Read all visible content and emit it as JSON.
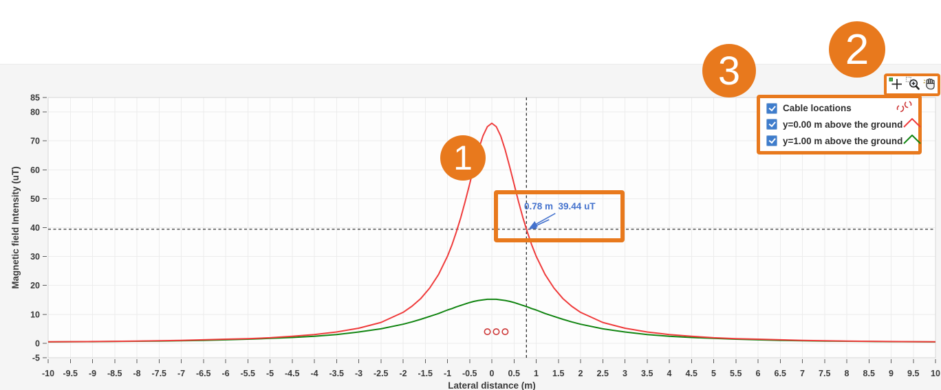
{
  "annotations": {
    "step1": "1",
    "step2": "2",
    "step3": "3"
  },
  "toolbar": {
    "tools": [
      {
        "name": "cursor-tool"
      },
      {
        "name": "zoom-tool"
      },
      {
        "name": "pan-tool"
      }
    ]
  },
  "legend": {
    "items": [
      {
        "label": "Cable locations",
        "checked": true,
        "symbol": "circles",
        "color": "#cc3333"
      },
      {
        "label": "y=0.00 m above the ground",
        "checked": true,
        "symbol": "line",
        "color": "#EF3B3B"
      },
      {
        "label": "y=1.00 m above the ground",
        "checked": true,
        "symbol": "line",
        "color": "#108410"
      }
    ]
  },
  "cursor": {
    "label": "0.78 m  39.44 uT",
    "x_m": 0.78,
    "value_uT": 39.44
  },
  "colors": {
    "accent_orange": "#E8791D",
    "curve_red": "#EF3B3B",
    "curve_green": "#108410",
    "cursor_blue": "#4472CD",
    "checkbox_blue": "#3F7DCC",
    "panel_bg": "#f5f5f5",
    "plot_bg": "#fdfdfd",
    "grid": "#ececec"
  },
  "chart_data": {
    "type": "line",
    "title": "",
    "xlabel": "Lateral distance (m)",
    "ylabel": "Magnetic field Intensity (uT)",
    "xlim": [
      -10,
      10
    ],
    "ylim": [
      -5,
      85
    ],
    "x_tick_step": 0.5,
    "y_tick_labels": [
      -5,
      0,
      10,
      20,
      30,
      40,
      50,
      60,
      70,
      80,
      85
    ],
    "y_grid_step": 10,
    "grid": true,
    "legend_position": "top-right",
    "x": [
      -10,
      -9.5,
      -9,
      -8.5,
      -8,
      -7.5,
      -7,
      -6.5,
      -6,
      -5.5,
      -5,
      -4.5,
      -4,
      -3.5,
      -3,
      -2.5,
      -2,
      -1.8,
      -1.6,
      -1.4,
      -1.2,
      -1,
      -0.9,
      -0.8,
      -0.7,
      -0.6,
      -0.5,
      -0.4,
      -0.3,
      -0.2,
      -0.1,
      0,
      0.1,
      0.2,
      0.3,
      0.4,
      0.5,
      0.6,
      0.7,
      0.8,
      0.9,
      1,
      1.2,
      1.4,
      1.6,
      1.8,
      2,
      2.5,
      3,
      3.5,
      4,
      4.5,
      5,
      5.5,
      6,
      6.5,
      7,
      7.5,
      8,
      8.5,
      9,
      9.5,
      10
    ],
    "series": [
      {
        "name": "y=0.00 m above the ground",
        "color": "#EF3B3B",
        "values": [
          0.5,
          0.55,
          0.61,
          0.68,
          0.77,
          0.88,
          1.0,
          1.2,
          1.4,
          1.6,
          1.9,
          2.4,
          3.0,
          3.9,
          5.2,
          7.2,
          10.7,
          12.8,
          15.5,
          19.1,
          23.8,
          30.1,
          34.0,
          38.5,
          43.5,
          49.1,
          55.1,
          61.2,
          66.9,
          71.7,
          74.9,
          76.1,
          74.9,
          71.7,
          66.9,
          61.2,
          55.1,
          49.1,
          43.5,
          38.5,
          34.0,
          30.1,
          23.8,
          19.1,
          15.5,
          12.8,
          10.7,
          7.2,
          5.2,
          3.9,
          3.0,
          2.4,
          1.9,
          1.6,
          1.4,
          1.2,
          1.0,
          0.88,
          0.77,
          0.68,
          0.61,
          0.55,
          0.5
        ]
      },
      {
        "name": "y=1.00 m above the ground",
        "color": "#108410",
        "values": [
          0.45,
          0.5,
          0.55,
          0.62,
          0.69,
          0.78,
          0.89,
          1.0,
          1.2,
          1.4,
          1.7,
          2.0,
          2.4,
          3.0,
          3.9,
          5.0,
          6.6,
          7.4,
          8.3,
          9.3,
          10.3,
          11.5,
          12.0,
          12.6,
          13.1,
          13.6,
          14.1,
          14.5,
          14.8,
          15.0,
          15.2,
          15.2,
          15.2,
          15.0,
          14.8,
          14.5,
          14.1,
          13.6,
          13.1,
          12.6,
          12.0,
          11.5,
          10.3,
          9.3,
          8.3,
          7.4,
          6.6,
          5.0,
          3.9,
          3.0,
          2.4,
          2.0,
          1.7,
          1.4,
          1.2,
          1.0,
          0.89,
          0.78,
          0.69,
          0.62,
          0.55,
          0.5,
          0.45
        ]
      }
    ],
    "cables": {
      "name": "Cable locations",
      "color": "#cc3333",
      "points": [
        {
          "x": -0.1,
          "y": 4.0
        },
        {
          "x": 0.1,
          "y": 4.0
        },
        {
          "x": 0.3,
          "y": 4.0
        }
      ]
    },
    "crosshair": {
      "x": 0.78,
      "y": 39.44
    }
  }
}
